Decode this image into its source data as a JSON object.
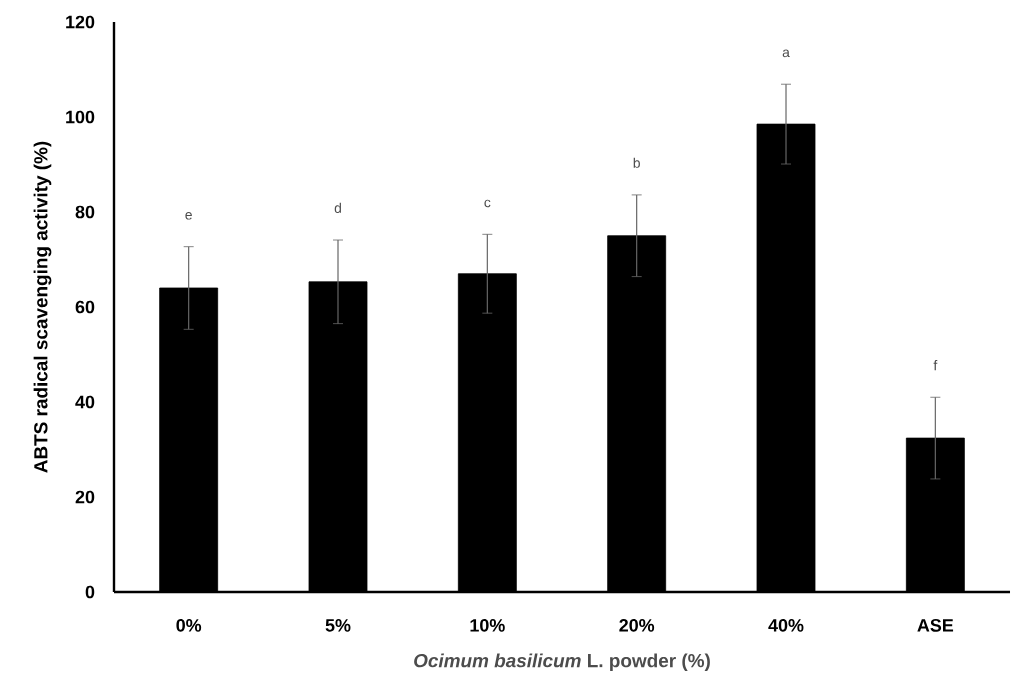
{
  "chart_data": {
    "type": "bar",
    "xlabel": "*Ocimum basilicum* L. powder (%)",
    "ylabel": "ABTS radical scavenging activity (%)",
    "categories": [
      "0%",
      "5%",
      "10%",
      "20%",
      "40%",
      "ASE"
    ],
    "values": [
      64,
      65.3,
      67,
      75,
      98.5,
      32.4
    ],
    "errors": [
      8.7,
      8.8,
      8.3,
      8.6,
      8.4,
      8.6
    ],
    "color": "#000000",
    "ylim": [
      0,
      120
    ],
    "yticks": [
      0,
      20,
      40,
      60,
      80,
      100,
      120
    ],
    "annotations": [
      "e",
      "d",
      "c",
      "b",
      "a",
      "f"
    ]
  }
}
